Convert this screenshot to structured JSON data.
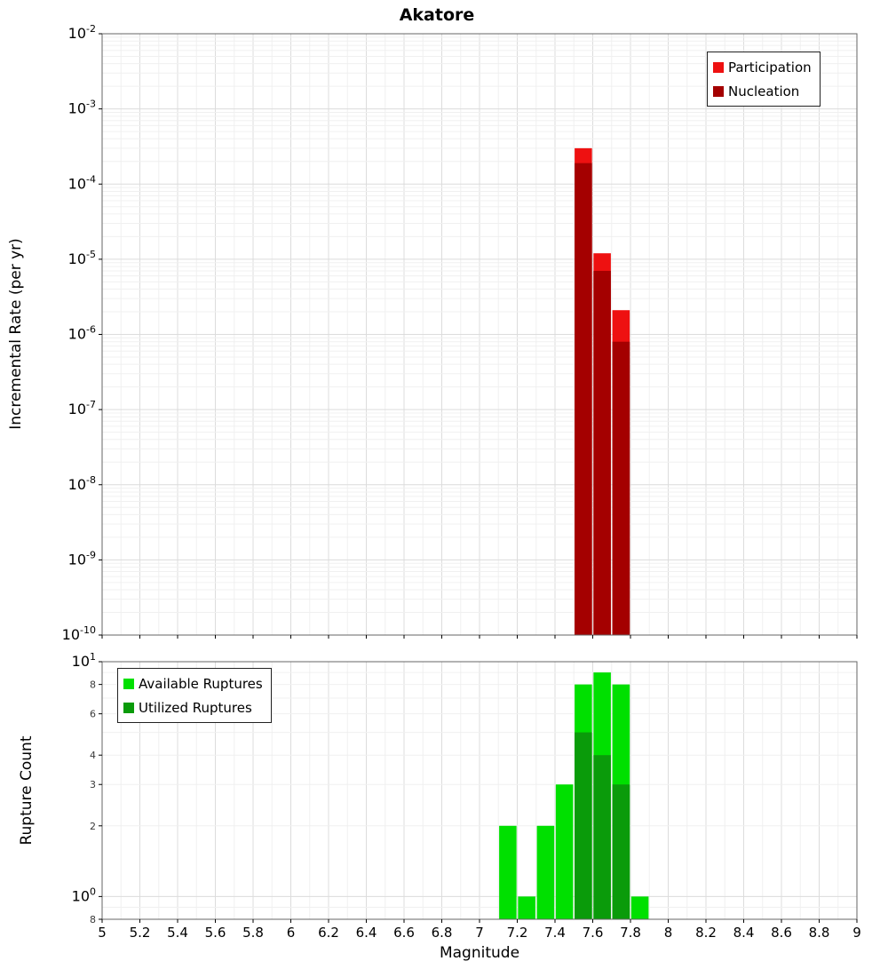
{
  "title": "Akatore",
  "colors": {
    "grid_major": "#dcdcdc",
    "grid_minor": "#f0f0f0",
    "axis_line": "#666666",
    "tick_text": "#000000",
    "minor_tick_text": "#3a3a3a"
  },
  "x_ticks": [
    {
      "v": 5,
      "label": "5"
    },
    {
      "v": 5.2,
      "label": "5.2"
    },
    {
      "v": 5.4,
      "label": "5.4"
    },
    {
      "v": 5.6,
      "label": "5.6"
    },
    {
      "v": 5.8,
      "label": "5.8"
    },
    {
      "v": 6,
      "label": "6"
    },
    {
      "v": 6.2,
      "label": "6.2"
    },
    {
      "v": 6.4,
      "label": "6.4"
    },
    {
      "v": 6.6,
      "label": "6.6"
    },
    {
      "v": 6.8,
      "label": "6.8"
    },
    {
      "v": 7,
      "label": "7"
    },
    {
      "v": 7.2,
      "label": "7.2"
    },
    {
      "v": 7.4,
      "label": "7.4"
    },
    {
      "v": 7.6,
      "label": "7.6"
    },
    {
      "v": 7.8,
      "label": "7.8"
    },
    {
      "v": 8,
      "label": "8"
    },
    {
      "v": 8.2,
      "label": "8.2"
    },
    {
      "v": 8.4,
      "label": "8.4"
    },
    {
      "v": 8.6,
      "label": "8.6"
    },
    {
      "v": 8.8,
      "label": "8.8"
    },
    {
      "v": 9,
      "label": "9"
    }
  ],
  "chart_data": [
    {
      "type": "bar",
      "title": "Akatore",
      "ylabel": "Incremental Rate (per yr)",
      "xlabel": "Magnitude",
      "yscale": "log",
      "ylim": [
        1e-10,
        0.01
      ],
      "xlim": [
        5,
        9
      ],
      "bin_width": 0.1,
      "grid": true,
      "legend_position": "top-right",
      "y_ticks": [
        {
          "v": 0.01,
          "sup": "-2"
        },
        {
          "v": 0.001,
          "sup": "-3"
        },
        {
          "v": 0.0001,
          "sup": "-4"
        },
        {
          "v": 1e-05,
          "sup": "-5"
        },
        {
          "v": 1e-06,
          "sup": "-6"
        },
        {
          "v": 1e-07,
          "sup": "-7"
        },
        {
          "v": 1e-08,
          "sup": "-8"
        },
        {
          "v": 1e-09,
          "sup": "-9"
        },
        {
          "v": 1e-10,
          "sup": "-10"
        }
      ],
      "series": [
        {
          "name": "Participation",
          "color": "#ee1111",
          "points": [
            {
              "x": 7.55,
              "y": 0.0003
            },
            {
              "x": 7.65,
              "y": 1.2e-05
            },
            {
              "x": 7.75,
              "y": 2.1e-06
            }
          ]
        },
        {
          "name": "Nucleation",
          "color": "#a40000",
          "points": [
            {
              "x": 7.55,
              "y": 0.00019
            },
            {
              "x": 7.65,
              "y": 7e-06
            },
            {
              "x": 7.75,
              "y": 8e-07
            }
          ]
        }
      ]
    },
    {
      "type": "bar",
      "title": "",
      "ylabel": "Rupture Count",
      "xlabel": "Magnitude",
      "yscale": "log",
      "ylim": [
        0.8,
        10
      ],
      "xlim": [
        5,
        9
      ],
      "bin_width": 0.1,
      "grid": true,
      "legend_position": "top-left",
      "y_ticks": [
        {
          "v": 10,
          "sup": "1"
        },
        {
          "v": 8,
          "label": "8"
        },
        {
          "v": 6,
          "label": "6"
        },
        {
          "v": 4,
          "label": "4"
        },
        {
          "v": 3,
          "label": "3"
        },
        {
          "v": 2,
          "label": "2"
        },
        {
          "v": 1,
          "sup": "0"
        },
        {
          "v": 0.8,
          "label": "8"
        }
      ],
      "series": [
        {
          "name": "Available Ruptures",
          "color": "#00e000",
          "points": [
            {
              "x": 7.15,
              "y": 2
            },
            {
              "x": 7.25,
              "y": 1
            },
            {
              "x": 7.35,
              "y": 2
            },
            {
              "x": 7.45,
              "y": 3
            },
            {
              "x": 7.55,
              "y": 8
            },
            {
              "x": 7.65,
              "y": 9
            },
            {
              "x": 7.75,
              "y": 8
            },
            {
              "x": 7.85,
              "y": 1
            }
          ]
        },
        {
          "name": "Utilized Ruptures",
          "color": "#0a9b0a",
          "points": [
            {
              "x": 7.55,
              "y": 5
            },
            {
              "x": 7.65,
              "y": 4
            },
            {
              "x": 7.75,
              "y": 3
            }
          ]
        }
      ]
    }
  ]
}
